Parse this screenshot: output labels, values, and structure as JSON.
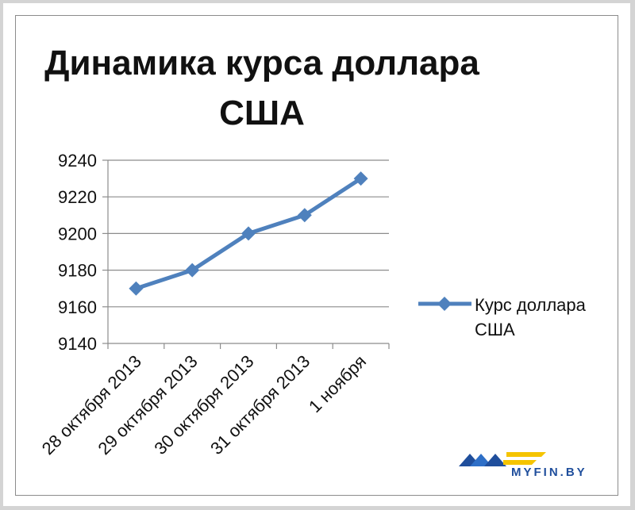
{
  "chart_data": {
    "type": "line",
    "title": "Динамика курса доллара США",
    "title_lines": [
      "Динамика курса доллара",
      "США"
    ],
    "categories": [
      "28 октября 2013",
      "29 октября 2013",
      "30 октября 2013",
      "31 октября 2013",
      "1 ноября"
    ],
    "series": [
      {
        "name": "Курс доллара США",
        "values": [
          9170,
          9180,
          9200,
          9210,
          9230
        ],
        "color": "#4f81bd",
        "marker": "diamond"
      }
    ],
    "legend_lines": [
      "Курс доллара",
      "США"
    ],
    "yticks": [
      9140,
      9160,
      9180,
      9200,
      9220,
      9240
    ],
    "ylim": [
      9140,
      9240
    ],
    "xlabel": "",
    "ylabel": "",
    "grid": true,
    "legend_position": "right"
  },
  "watermark": {
    "text": "MYFIN.BY",
    "colors": [
      "#1f4e9c",
      "#f5c400"
    ]
  }
}
